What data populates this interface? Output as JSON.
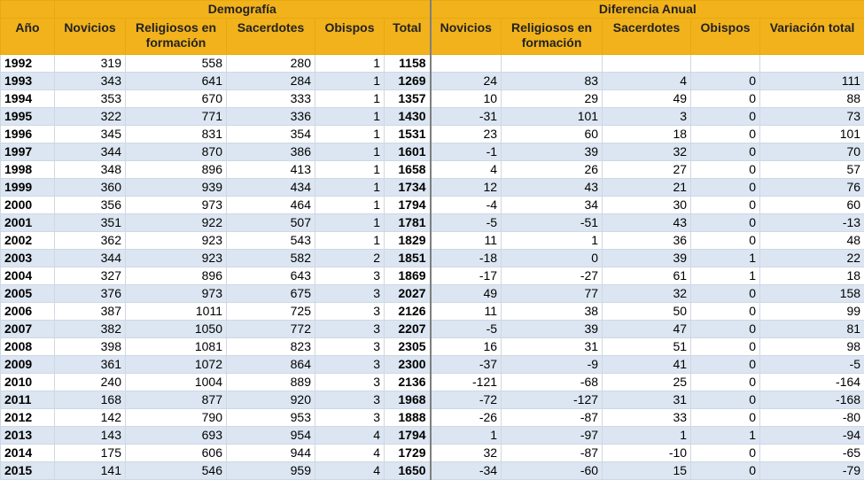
{
  "header": {
    "group_demografia": "Demografía",
    "group_diferencia": "Diferencia Anual",
    "columns": [
      "Año",
      "Novicios",
      "Religiosos en formación",
      "Sacerdotes",
      "Obispos",
      "Total",
      "Novicios",
      "Religiosos en formación",
      "Sacerdotes",
      "Obispos",
      "Variación total"
    ]
  },
  "rows": [
    [
      "1992",
      "319",
      "558",
      "280",
      "1",
      "1158",
      "",
      "",
      "",
      "",
      ""
    ],
    [
      "1993",
      "343",
      "641",
      "284",
      "1",
      "1269",
      "24",
      "83",
      "4",
      "0",
      "111"
    ],
    [
      "1994",
      "353",
      "670",
      "333",
      "1",
      "1357",
      "10",
      "29",
      "49",
      "0",
      "88"
    ],
    [
      "1995",
      "322",
      "771",
      "336",
      "1",
      "1430",
      "-31",
      "101",
      "3",
      "0",
      "73"
    ],
    [
      "1996",
      "345",
      "831",
      "354",
      "1",
      "1531",
      "23",
      "60",
      "18",
      "0",
      "101"
    ],
    [
      "1997",
      "344",
      "870",
      "386",
      "1",
      "1601",
      "-1",
      "39",
      "32",
      "0",
      "70"
    ],
    [
      "1998",
      "348",
      "896",
      "413",
      "1",
      "1658",
      "4",
      "26",
      "27",
      "0",
      "57"
    ],
    [
      "1999",
      "360",
      "939",
      "434",
      "1",
      "1734",
      "12",
      "43",
      "21",
      "0",
      "76"
    ],
    [
      "2000",
      "356",
      "973",
      "464",
      "1",
      "1794",
      "-4",
      "34",
      "30",
      "0",
      "60"
    ],
    [
      "2001",
      "351",
      "922",
      "507",
      "1",
      "1781",
      "-5",
      "-51",
      "43",
      "0",
      "-13"
    ],
    [
      "2002",
      "362",
      "923",
      "543",
      "1",
      "1829",
      "11",
      "1",
      "36",
      "0",
      "48"
    ],
    [
      "2003",
      "344",
      "923",
      "582",
      "2",
      "1851",
      "-18",
      "0",
      "39",
      "1",
      "22"
    ],
    [
      "2004",
      "327",
      "896",
      "643",
      "3",
      "1869",
      "-17",
      "-27",
      "61",
      "1",
      "18"
    ],
    [
      "2005",
      "376",
      "973",
      "675",
      "3",
      "2027",
      "49",
      "77",
      "32",
      "0",
      "158"
    ],
    [
      "2006",
      "387",
      "1011",
      "725",
      "3",
      "2126",
      "11",
      "38",
      "50",
      "0",
      "99"
    ],
    [
      "2007",
      "382",
      "1050",
      "772",
      "3",
      "2207",
      "-5",
      "39",
      "47",
      "0",
      "81"
    ],
    [
      "2008",
      "398",
      "1081",
      "823",
      "3",
      "2305",
      "16",
      "31",
      "51",
      "0",
      "98"
    ],
    [
      "2009",
      "361",
      "1072",
      "864",
      "3",
      "2300",
      "-37",
      "-9",
      "41",
      "0",
      "-5"
    ],
    [
      "2010",
      "240",
      "1004",
      "889",
      "3",
      "2136",
      "-121",
      "-68",
      "25",
      "0",
      "-164"
    ],
    [
      "2011",
      "168",
      "877",
      "920",
      "3",
      "1968",
      "-72",
      "-127",
      "31",
      "0",
      "-168"
    ],
    [
      "2012",
      "142",
      "790",
      "953",
      "3",
      "1888",
      "-26",
      "-87",
      "33",
      "0",
      "-80"
    ],
    [
      "2013",
      "143",
      "693",
      "954",
      "4",
      "1794",
      "1",
      "-97",
      "1",
      "1",
      "-94"
    ],
    [
      "2014",
      "175",
      "606",
      "944",
      "4",
      "1729",
      "32",
      "-87",
      "-10",
      "0",
      "-65"
    ],
    [
      "2015",
      "141",
      "546",
      "959",
      "4",
      "1650",
      "-34",
      "-60",
      "15",
      "0",
      "-79"
    ]
  ],
  "colors": {
    "header_bg": "#f2b21b",
    "band_bg": "#dce6f2",
    "grid": "#cfd8e3"
  }
}
